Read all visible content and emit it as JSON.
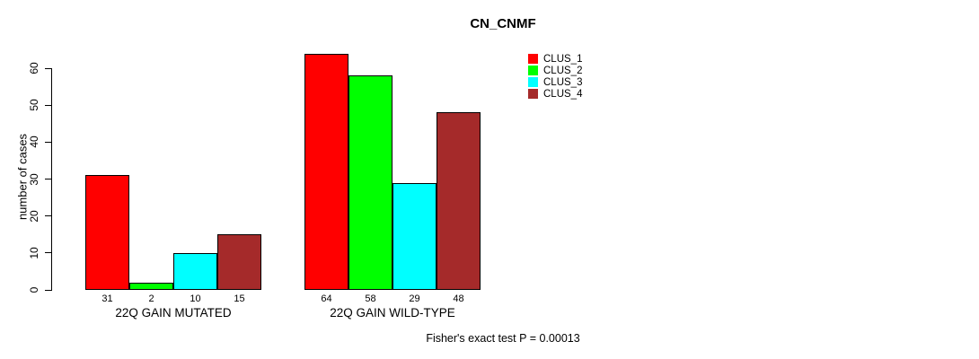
{
  "chart_data": {
    "type": "bar",
    "title": "CN_CNMF",
    "ylabel": "number of cases",
    "xlabel": "",
    "ylim": [
      0,
      60
    ],
    "yticks": [
      0,
      10,
      20,
      30,
      40,
      50,
      60
    ],
    "grid": false,
    "categories": [
      "22Q GAIN MUTATED",
      "22Q GAIN WILD-TYPE"
    ],
    "series": [
      {
        "name": "CLUS_1",
        "color": "#FF0000",
        "values": [
          31,
          64
        ]
      },
      {
        "name": "CLUS_2",
        "color": "#00FF00",
        "values": [
          2,
          58
        ]
      },
      {
        "name": "CLUS_3",
        "color": "#00FFFF",
        "values": [
          10,
          29
        ]
      },
      {
        "name": "CLUS_4",
        "color": "#A52A2A",
        "values": [
          15,
          48
        ]
      }
    ],
    "bar_value_labels": [
      [
        31,
        2,
        10,
        15
      ],
      [
        64,
        58,
        29,
        48
      ]
    ],
    "legend": {
      "position": "right",
      "items": [
        "CLUS_1",
        "CLUS_2",
        "CLUS_3",
        "CLUS_4"
      ]
    },
    "annotation": "Fisher's exact test P = 0.00013",
    "background_color": "#FFFFFF",
    "axis_color": "#000000",
    "text_color": "#000000"
  }
}
